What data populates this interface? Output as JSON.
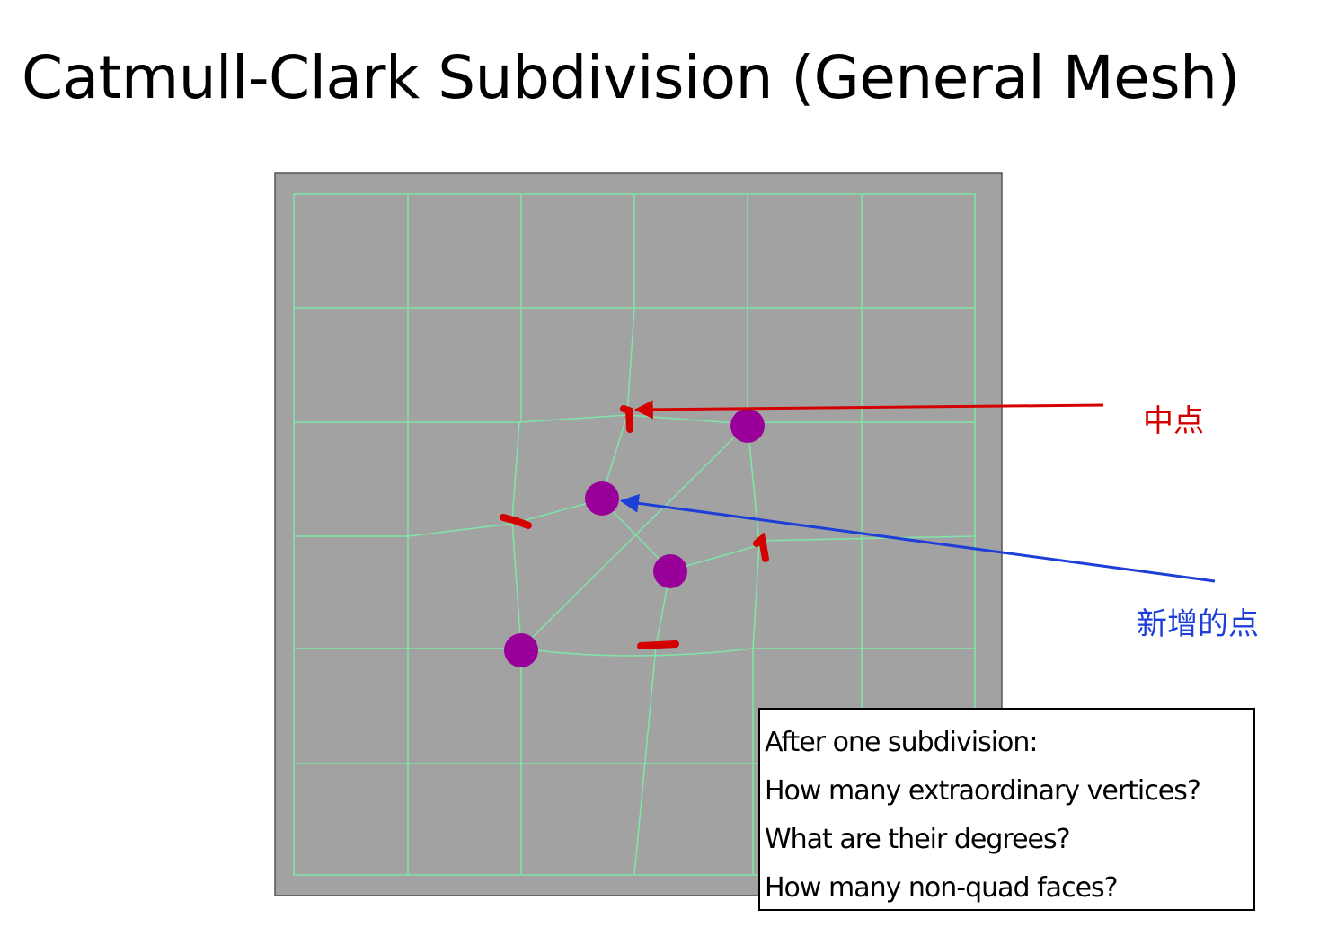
{
  "title": "Catmull-Clark Subdivision (General Mesh)",
  "annotations": {
    "midpoint_label": "中点",
    "new_point_label": "新增的点"
  },
  "question_box": {
    "lines": [
      "After one subdivision:",
      "How many extraordinary vertices?",
      "What are their degrees?",
      "How many non-quad faces?"
    ]
  },
  "colors": {
    "background_panel": "#a2a2a2",
    "mesh_lines": "#7ee6a6",
    "vertex_dots": "#990099",
    "midpoint_marks": "#d40000",
    "midpoint_arrow": "#d40000",
    "new_point_arrow": "#1d3fd8"
  }
}
